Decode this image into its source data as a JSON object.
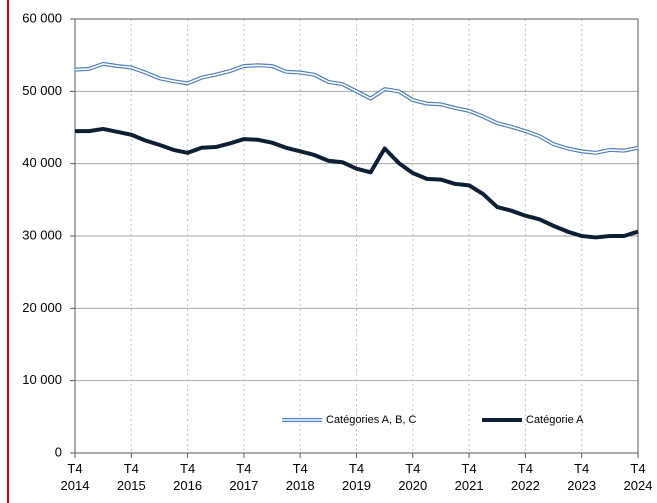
{
  "chart_data": {
    "type": "line",
    "categories": [
      "T4\n2014",
      null,
      null,
      null,
      "T4\n2015",
      null,
      null,
      null,
      "T4\n2016",
      null,
      null,
      null,
      "T4\n2017",
      null,
      null,
      null,
      "T4\n2018",
      null,
      null,
      null,
      "T4\n2019",
      null,
      null,
      null,
      "T4\n2020",
      null,
      null,
      null,
      "T4\n2021",
      null,
      null,
      null,
      "T4\n2022",
      null,
      null,
      null,
      "T4\n2023",
      null,
      null,
      null,
      "T4\n2024"
    ],
    "series": [
      {
        "name": "Catégories A, B, C",
        "color": "#4f81bd",
        "style": "double",
        "values": [
          53000,
          53100,
          53800,
          53500,
          53300,
          52600,
          51800,
          51400,
          51100,
          51900,
          52300,
          52800,
          53500,
          53600,
          53500,
          52700,
          52600,
          52300,
          51300,
          51000,
          50000,
          49000,
          50300,
          50000,
          48800,
          48300,
          48200,
          47700,
          47300,
          46500,
          45600,
          45100,
          44500,
          43800,
          42700,
          42100,
          41700,
          41500,
          41900,
          41800,
          42200
        ]
      },
      {
        "name": "Catégorie A",
        "color": "#0d1f35",
        "style": "solid",
        "values": [
          44500,
          44500,
          44800,
          44400,
          44000,
          43200,
          42600,
          41900,
          41500,
          42200,
          42300,
          42800,
          43400,
          43300,
          42900,
          42200,
          41700,
          41200,
          40400,
          40200,
          39300,
          38800,
          42100,
          40100,
          38700,
          37900,
          37800,
          37200,
          37000,
          35800,
          34000,
          33500,
          32800,
          32300,
          31400,
          30600,
          30000,
          29800,
          30000,
          30000,
          30600
        ]
      }
    ],
    "ylim": [
      0,
      60000
    ],
    "yticks": [
      0,
      {
        "value": 10000,
        "label": "10 000"
      },
      {
        "value": 20000,
        "label": "20 000"
      },
      {
        "value": 30000,
        "label": "30 000"
      },
      {
        "value": 40000,
        "label": "40 000"
      },
      {
        "value": 50000,
        "label": "50 000"
      },
      {
        "value": 60000,
        "label": "60 000"
      }
    ],
    "grid": true,
    "legend": "bottom"
  }
}
